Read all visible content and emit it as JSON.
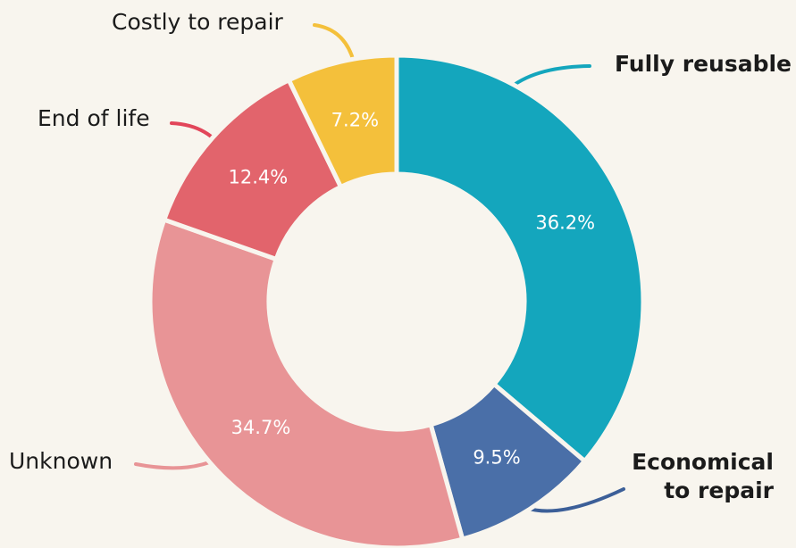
{
  "chart_data": {
    "type": "donut",
    "categories": [
      "Fully reusable",
      "Economical to repair",
      "Unknown",
      "End of life",
      "Costly to repair"
    ],
    "values": [
      36.2,
      9.5,
      34.7,
      12.4,
      7.2
    ],
    "value_labels": [
      "36.2%",
      "9.5%",
      "34.7%",
      "12.4%",
      "7.2%"
    ],
    "colors": [
      "#14a6bd",
      "#4a6fa8",
      "#e89496",
      "#e2646c",
      "#f4c03b"
    ]
  }
}
